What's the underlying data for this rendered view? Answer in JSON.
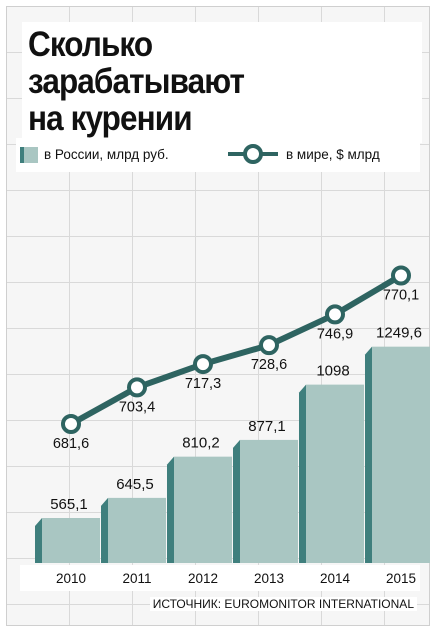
{
  "title_lines": [
    "Сколько",
    "зарабатывают",
    "на курении"
  ],
  "legend": {
    "russia": "в России, млрд руб.",
    "world": "в мире, $ млрд"
  },
  "source": "ИСТОЧНИК: EUROMONITOR INTERNATIONAL",
  "colors": {
    "bar_front": "#a9c6c2",
    "bar_side": "#3f7f7d",
    "line": "#2e6461",
    "marker_fill": "#ffffff"
  },
  "chart_data": {
    "type": "bar",
    "categories": [
      "2010",
      "2011",
      "2012",
      "2013",
      "2014",
      "2015"
    ],
    "series": [
      {
        "name": "в России, млрд руб.",
        "type": "bar",
        "values": [
          565.1,
          645.5,
          810.2,
          877.1,
          1098,
          1249.6
        ],
        "labels": [
          "565,1",
          "645,5",
          "810,2",
          "877,1",
          "1098",
          "1249,6"
        ]
      },
      {
        "name": "в мире, $ млрд",
        "type": "line",
        "values": [
          681.6,
          703.4,
          717.3,
          728.6,
          746.9,
          770.1
        ],
        "labels": [
          "681,6",
          "703,4",
          "717,3",
          "728,6",
          "746,9",
          "770,1"
        ]
      }
    ]
  }
}
